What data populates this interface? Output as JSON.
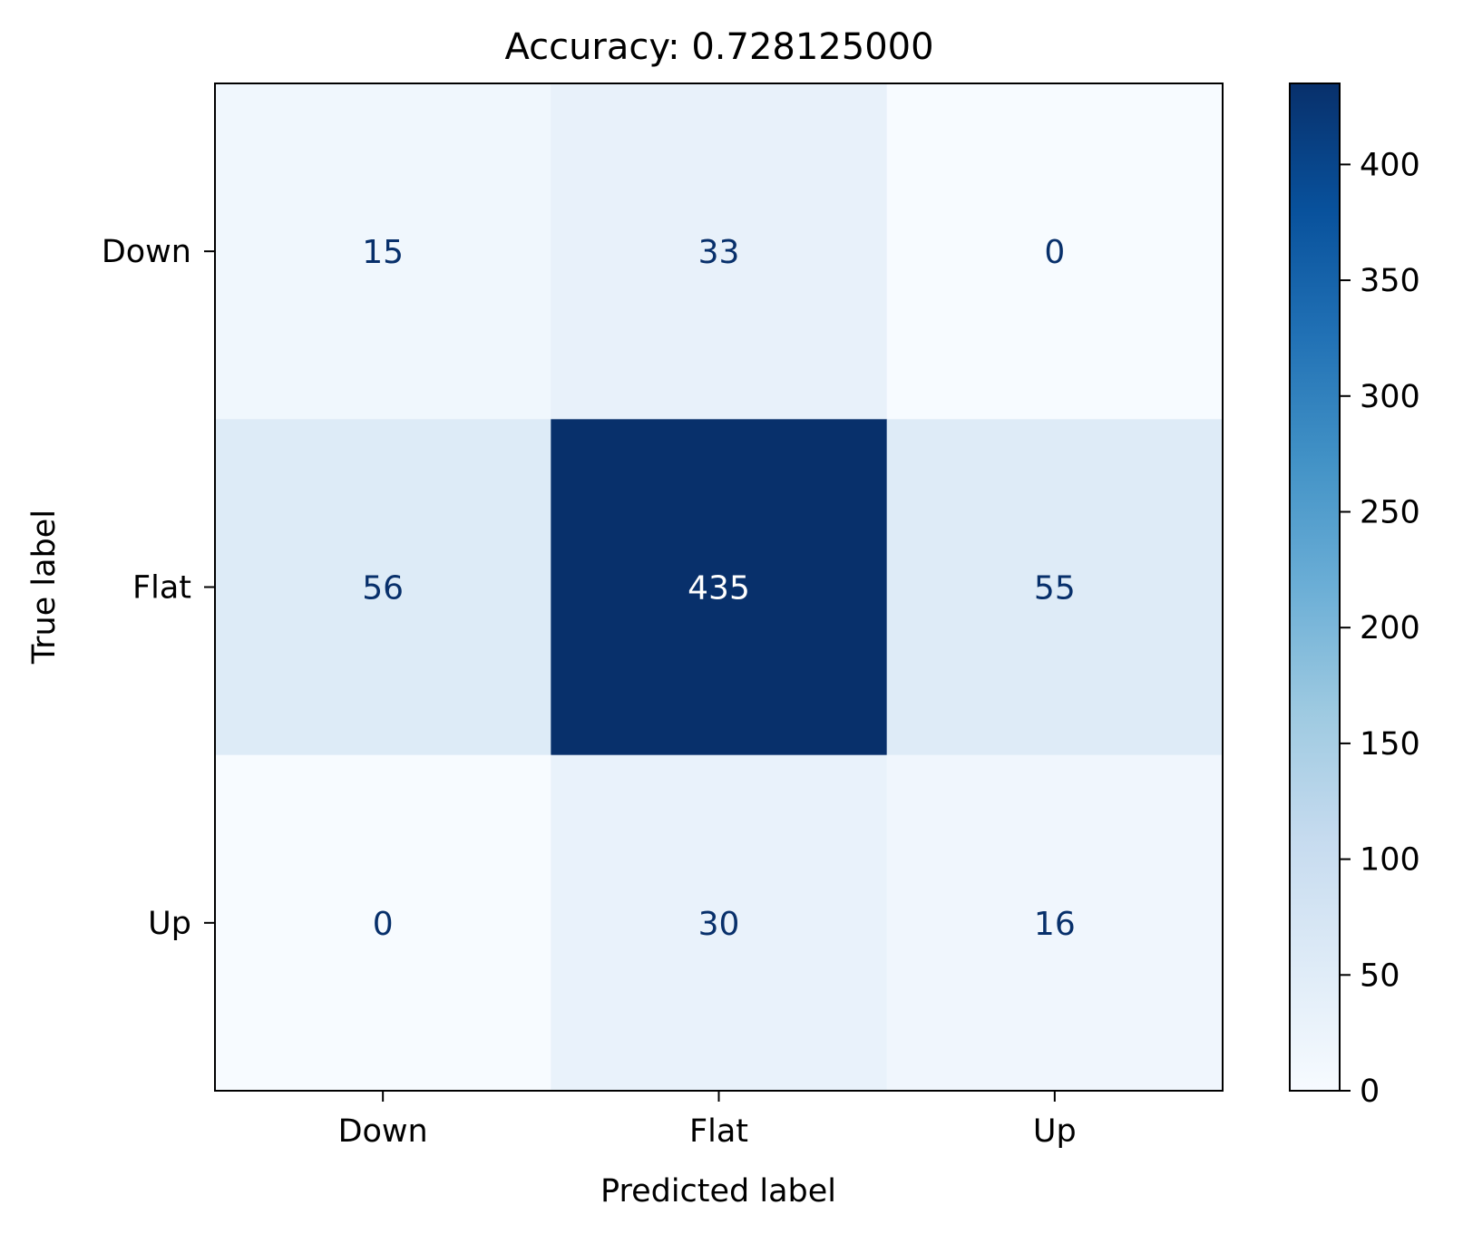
{
  "chart_data": {
    "type": "heatmap",
    "title": "Accuracy: 0.728125000",
    "xlabel": "Predicted label",
    "ylabel": "True label",
    "x_categories": [
      "Down",
      "Flat",
      "Up"
    ],
    "y_categories": [
      "Down",
      "Flat",
      "Up"
    ],
    "matrix": [
      [
        15,
        33,
        0
      ],
      [
        56,
        435,
        55
      ],
      [
        0,
        30,
        16
      ]
    ],
    "colormap": "Blues",
    "colorbar": {
      "range": [
        0,
        435
      ],
      "ticks": [
        0,
        50,
        100,
        150,
        200,
        250,
        300,
        350,
        400
      ]
    },
    "colors": {
      "text_dark": "#08306b",
      "text_light": "#ffffff",
      "axis": "#000000"
    }
  }
}
